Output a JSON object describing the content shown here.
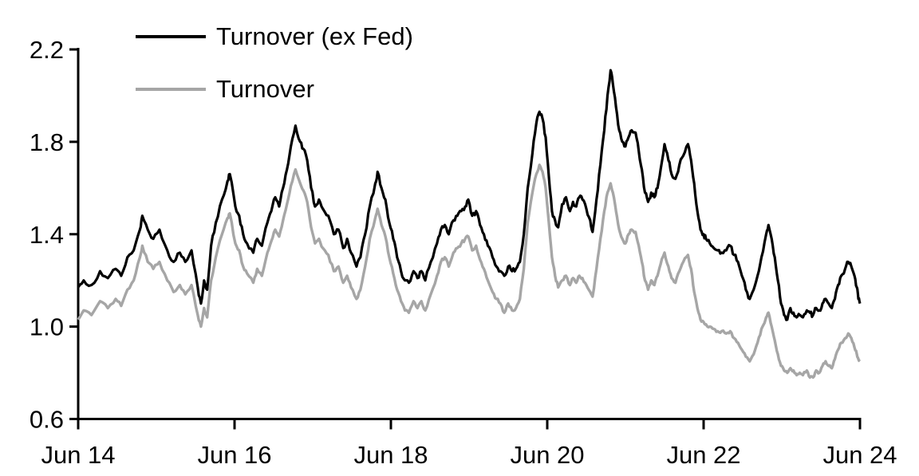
{
  "page": {
    "background": "#ffffff"
  },
  "chart_data": {
    "type": "line",
    "title": "",
    "xlabel": "",
    "ylabel": "",
    "x_unit": "decimal_year",
    "xlim": [
      2014.45,
      2024.45
    ],
    "ylim": [
      0.6,
      2.2
    ],
    "grid": false,
    "legend_position": "top-left-inside",
    "xticks": {
      "values": [
        2014.45,
        2016.45,
        2018.45,
        2020.45,
        2022.45,
        2024.45
      ],
      "labels": [
        "Jun 14",
        "Jun 16",
        "Jun 18",
        "Jun 20",
        "Jun 22",
        "Jun 24"
      ]
    },
    "yticks": {
      "values": [
        0.6,
        1.0,
        1.4,
        1.8,
        2.2
      ],
      "labels": [
        "0.6",
        "1.0",
        "1.4",
        "1.8",
        "2.2"
      ]
    },
    "x": [
      2014.45,
      2014.52,
      2014.62,
      2014.73,
      2014.83,
      2014.93,
      2015.0,
      2015.08,
      2015.16,
      2015.24,
      2015.27,
      2015.34,
      2015.41,
      2015.49,
      2015.59,
      2015.67,
      2015.75,
      2015.82,
      2015.9,
      2015.98,
      2016.02,
      2016.06,
      2016.1,
      2016.15,
      2016.21,
      2016.29,
      2016.36,
      2016.39,
      2016.46,
      2016.51,
      2016.56,
      2016.61,
      2016.69,
      2016.74,
      2016.8,
      2016.87,
      2016.92,
      2016.97,
      2017.02,
      2017.07,
      2017.12,
      2017.17,
      2017.23,
      2017.29,
      2017.33,
      2017.38,
      2017.43,
      2017.48,
      2017.53,
      2017.58,
      2017.65,
      2017.72,
      2017.78,
      2017.84,
      2017.89,
      2017.94,
      2018.01,
      2018.06,
      2018.12,
      2018.18,
      2018.25,
      2018.28,
      2018.33,
      2018.38,
      2018.43,
      2018.48,
      2018.53,
      2018.58,
      2018.63,
      2018.68,
      2018.74,
      2018.79,
      2018.84,
      2018.89,
      2018.96,
      2019.04,
      2019.09,
      2019.14,
      2019.19,
      2019.25,
      2019.3,
      2019.35,
      2019.4,
      2019.44,
      2019.49,
      2019.54,
      2019.59,
      2019.64,
      2019.69,
      2019.75,
      2019.8,
      2019.85,
      2019.9,
      2019.95,
      2020.0,
      2020.05,
      2020.1,
      2020.15,
      2020.2,
      2020.26,
      2020.31,
      2020.35,
      2020.39,
      2020.43,
      2020.47,
      2020.51,
      2020.55,
      2020.59,
      2020.64,
      2020.69,
      2020.74,
      2020.78,
      2020.82,
      2020.86,
      2020.9,
      2020.95,
      2021.0,
      2021.03,
      2021.08,
      2021.13,
      2021.18,
      2021.22,
      2021.26,
      2021.29,
      2021.33,
      2021.37,
      2021.41,
      2021.45,
      2021.49,
      2021.53,
      2021.58,
      2021.62,
      2021.66,
      2021.7,
      2021.74,
      2021.78,
      2021.82,
      2021.86,
      2021.9,
      2021.95,
      2022.0,
      2022.04,
      2022.09,
      2022.14,
      2022.19,
      2022.25,
      2022.29,
      2022.33,
      2022.37,
      2022.41,
      2022.45,
      2022.48,
      2022.53,
      2022.58,
      2022.63,
      2022.68,
      2022.74,
      2022.79,
      2022.84,
      2022.89,
      2022.94,
      2022.99,
      2023.04,
      2023.09,
      2023.14,
      2023.19,
      2023.25,
      2023.28,
      2023.32,
      2023.36,
      2023.4,
      2023.44,
      2023.48,
      2023.52,
      2023.56,
      2023.6,
      2023.64,
      2023.68,
      2023.72,
      2023.77,
      2023.81,
      2023.85,
      2023.89,
      2023.93,
      2023.97,
      2024.01,
      2024.05,
      2024.09,
      2024.13,
      2024.17,
      2024.21,
      2024.26,
      2024.3,
      2024.34,
      2024.38,
      2024.41,
      2024.43,
      2024.45
    ],
    "series": [
      {
        "name": "Turnover (ex Fed)",
        "color": "#000000",
        "values": [
          1.17,
          1.2,
          1.18,
          1.24,
          1.21,
          1.25,
          1.22,
          1.3,
          1.33,
          1.42,
          1.48,
          1.42,
          1.38,
          1.42,
          1.33,
          1.28,
          1.32,
          1.28,
          1.33,
          1.17,
          1.1,
          1.2,
          1.16,
          1.35,
          1.45,
          1.55,
          1.63,
          1.66,
          1.52,
          1.48,
          1.4,
          1.36,
          1.32,
          1.38,
          1.35,
          1.45,
          1.5,
          1.56,
          1.52,
          1.6,
          1.68,
          1.78,
          1.87,
          1.8,
          1.77,
          1.72,
          1.6,
          1.52,
          1.55,
          1.51,
          1.48,
          1.4,
          1.42,
          1.34,
          1.38,
          1.32,
          1.26,
          1.3,
          1.4,
          1.52,
          1.62,
          1.67,
          1.6,
          1.55,
          1.45,
          1.38,
          1.3,
          1.24,
          1.2,
          1.19,
          1.24,
          1.21,
          1.24,
          1.2,
          1.28,
          1.36,
          1.42,
          1.44,
          1.4,
          1.46,
          1.48,
          1.5,
          1.52,
          1.55,
          1.48,
          1.5,
          1.44,
          1.4,
          1.35,
          1.3,
          1.26,
          1.24,
          1.22,
          1.26,
          1.24,
          1.25,
          1.28,
          1.4,
          1.6,
          1.75,
          1.88,
          1.93,
          1.9,
          1.82,
          1.65,
          1.5,
          1.46,
          1.43,
          1.53,
          1.56,
          1.5,
          1.54,
          1.52,
          1.56,
          1.55,
          1.51,
          1.46,
          1.41,
          1.55,
          1.7,
          1.85,
          2.0,
          2.11,
          2.05,
          1.95,
          1.85,
          1.8,
          1.78,
          1.82,
          1.85,
          1.84,
          1.76,
          1.68,
          1.58,
          1.54,
          1.58,
          1.56,
          1.6,
          1.68,
          1.79,
          1.72,
          1.66,
          1.64,
          1.7,
          1.74,
          1.79,
          1.72,
          1.62,
          1.5,
          1.42,
          1.4,
          1.38,
          1.36,
          1.34,
          1.33,
          1.32,
          1.33,
          1.35,
          1.31,
          1.28,
          1.22,
          1.16,
          1.12,
          1.16,
          1.22,
          1.3,
          1.4,
          1.44,
          1.38,
          1.3,
          1.2,
          1.1,
          1.05,
          1.03,
          1.08,
          1.06,
          1.04,
          1.05,
          1.04,
          1.07,
          1.06,
          1.05,
          1.08,
          1.07,
          1.1,
          1.12,
          1.1,
          1.08,
          1.12,
          1.18,
          1.22,
          1.25,
          1.28,
          1.26,
          1.22,
          1.17,
          1.12,
          1.1
        ]
      },
      {
        "name": "Turnover",
        "color": "#a6a6a6",
        "values": [
          1.03,
          1.07,
          1.05,
          1.11,
          1.08,
          1.12,
          1.09,
          1.16,
          1.2,
          1.3,
          1.35,
          1.28,
          1.25,
          1.28,
          1.2,
          1.15,
          1.18,
          1.14,
          1.18,
          1.05,
          1.0,
          1.08,
          1.04,
          1.2,
          1.3,
          1.4,
          1.47,
          1.49,
          1.36,
          1.33,
          1.26,
          1.23,
          1.19,
          1.25,
          1.22,
          1.32,
          1.37,
          1.42,
          1.39,
          1.46,
          1.53,
          1.61,
          1.68,
          1.62,
          1.59,
          1.54,
          1.43,
          1.36,
          1.38,
          1.34,
          1.31,
          1.24,
          1.26,
          1.19,
          1.22,
          1.17,
          1.12,
          1.16,
          1.26,
          1.38,
          1.47,
          1.51,
          1.44,
          1.39,
          1.3,
          1.23,
          1.16,
          1.11,
          1.07,
          1.06,
          1.11,
          1.08,
          1.11,
          1.07,
          1.14,
          1.22,
          1.28,
          1.3,
          1.26,
          1.32,
          1.34,
          1.36,
          1.38,
          1.39,
          1.33,
          1.35,
          1.29,
          1.25,
          1.2,
          1.15,
          1.12,
          1.1,
          1.06,
          1.1,
          1.07,
          1.08,
          1.12,
          1.25,
          1.45,
          1.58,
          1.66,
          1.7,
          1.67,
          1.6,
          1.45,
          1.3,
          1.22,
          1.17,
          1.2,
          1.22,
          1.18,
          1.21,
          1.19,
          1.22,
          1.21,
          1.18,
          1.15,
          1.13,
          1.25,
          1.38,
          1.5,
          1.58,
          1.62,
          1.58,
          1.5,
          1.42,
          1.38,
          1.36,
          1.4,
          1.42,
          1.41,
          1.35,
          1.28,
          1.2,
          1.16,
          1.2,
          1.18,
          1.22,
          1.27,
          1.32,
          1.26,
          1.21,
          1.19,
          1.24,
          1.28,
          1.31,
          1.25,
          1.15,
          1.08,
          1.03,
          1.02,
          1.01,
          1.0,
          0.99,
          0.98,
          0.98,
          0.97,
          0.98,
          0.95,
          0.93,
          0.9,
          0.87,
          0.85,
          0.88,
          0.93,
          0.99,
          1.04,
          1.06,
          1.0,
          0.94,
          0.88,
          0.83,
          0.81,
          0.8,
          0.82,
          0.81,
          0.79,
          0.8,
          0.79,
          0.81,
          0.78,
          0.78,
          0.81,
          0.8,
          0.83,
          0.85,
          0.83,
          0.82,
          0.86,
          0.9,
          0.93,
          0.95,
          0.97,
          0.95,
          0.91,
          0.88,
          0.86,
          0.85
        ]
      }
    ]
  },
  "style": {
    "axis_color": "#000000",
    "axis_width": 3,
    "tick_len_y": 11,
    "tick_len_x": 13,
    "line_widths": [
      3.2,
      3.4
    ],
    "jitter": [
      0.013,
      0.008
    ],
    "seed": 13,
    "tick_font_size": 31
  }
}
